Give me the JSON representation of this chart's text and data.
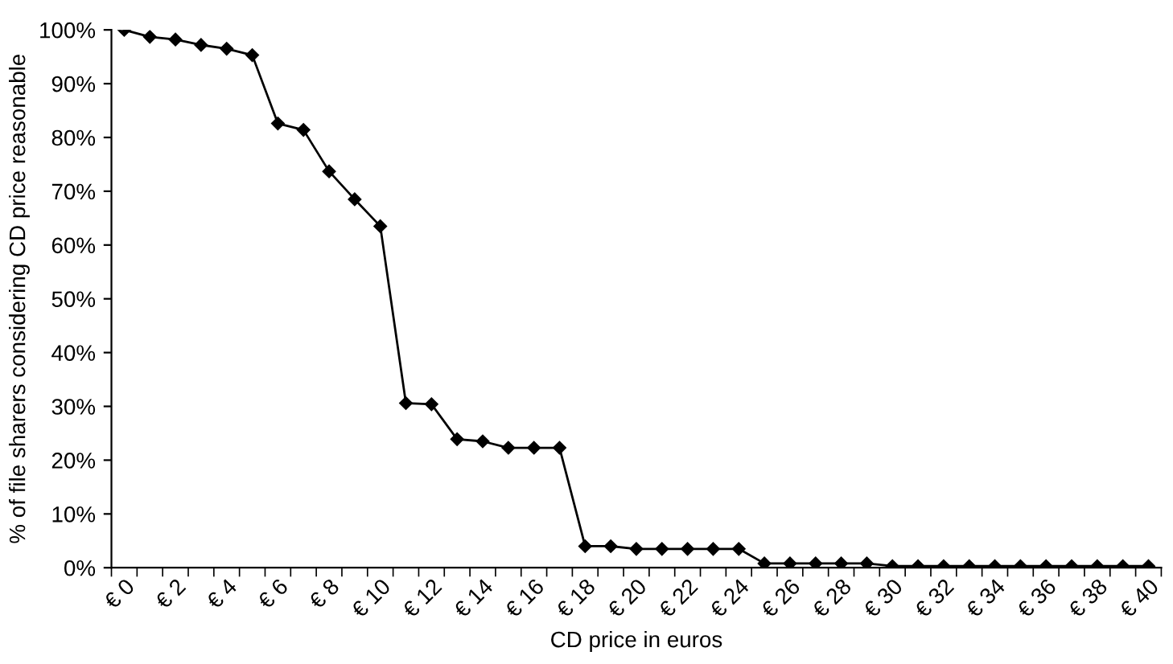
{
  "chart_data": {
    "type": "line",
    "xlabel": "CD price in euros",
    "ylabel": "% of file sharers considering CD price reasonable",
    "categories": [
      "€ 0",
      null,
      "€ 2",
      null,
      "€ 4",
      null,
      "€ 6",
      null,
      "€ 8",
      null,
      "€ 10",
      null,
      "€ 12",
      null,
      "€ 14",
      null,
      "€ 16",
      null,
      "€ 18",
      null,
      "€ 20",
      null,
      "€ 22",
      null,
      "€ 24",
      null,
      "€ 26",
      null,
      "€ 28",
      null,
      "€ 30",
      null,
      "€ 32",
      null,
      "€ 34",
      null,
      "€ 36",
      null,
      "€ 38",
      null,
      "€ 40"
    ],
    "series": [
      {
        "color": "#000000",
        "values": [
          100,
          98.7,
          98.2,
          97.2,
          96.5,
          95.3,
          82.6,
          81.4,
          73.7,
          68.5,
          63.5,
          30.6,
          30.4,
          23.9,
          23.5,
          22.3,
          22.3,
          22.3,
          4,
          4,
          3.5,
          3.5,
          3.5,
          3.5,
          3.5,
          0.8,
          0.8,
          0.8,
          0.8,
          0.8,
          0.3,
          0.3,
          0.3,
          0.3,
          0.3,
          0.3,
          0.3,
          0.3,
          0.3,
          0.3,
          0.3
        ]
      }
    ],
    "ylim": [
      0,
      100
    ],
    "yticks": [
      {
        "value": 0,
        "label": "0%"
      },
      {
        "value": 10,
        "label": "10%"
      },
      {
        "value": 20,
        "label": "20%"
      },
      {
        "value": 30,
        "label": "30%"
      },
      {
        "value": 40,
        "label": "40%"
      },
      {
        "value": 50,
        "label": "50%"
      },
      {
        "value": 60,
        "label": "60%"
      },
      {
        "value": 70,
        "label": "70%"
      },
      {
        "value": 80,
        "label": "80%"
      },
      {
        "value": 90,
        "label": "90%"
      },
      {
        "value": 100,
        "label": "100%"
      }
    ],
    "grid": false,
    "marker": "diamond",
    "line_style": "solid"
  }
}
